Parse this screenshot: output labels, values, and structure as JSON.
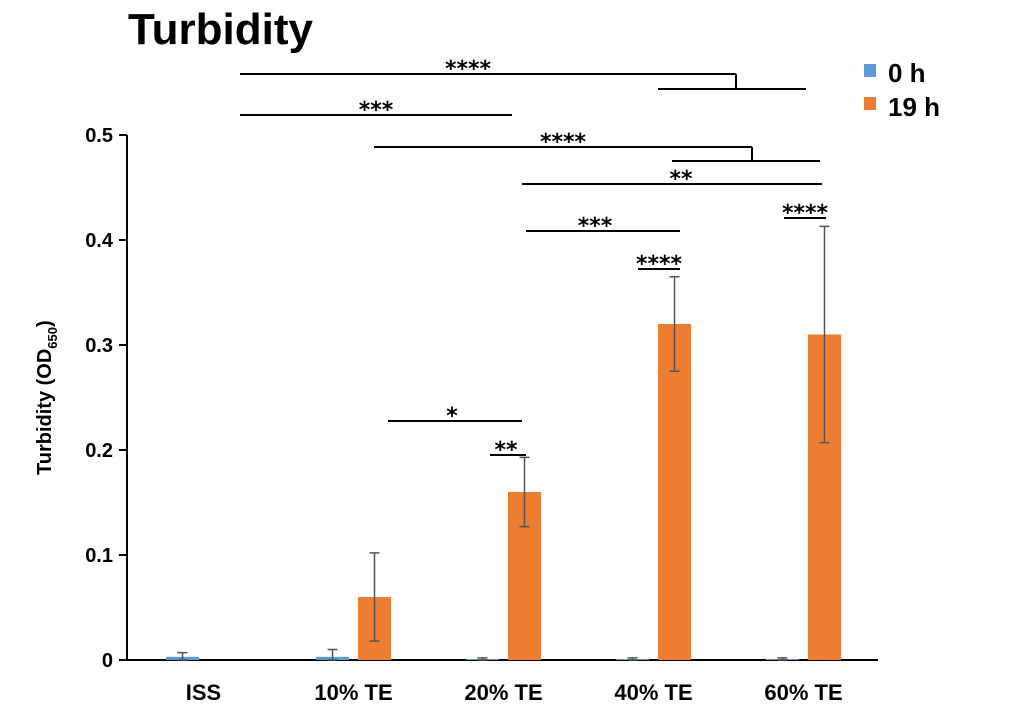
{
  "chart_data": {
    "type": "bar",
    "title": "Turbidity",
    "ylabel_main": "Turbidity (OD",
    "ylabel_sub": "650",
    "ylabel_close": ")",
    "ylim": [
      0,
      0.5
    ],
    "yticks": [
      0,
      0.1,
      0.2,
      0.3,
      0.4,
      0.5
    ],
    "ytick_labels": [
      "0",
      "0.1",
      "0.2",
      "0.3",
      "0.4",
      "0.5"
    ],
    "categories": [
      "ISS",
      "10%  TE",
      "20%  TE",
      "40%  TE",
      "60%  TE"
    ],
    "series": [
      {
        "name": "0 h",
        "color": "#5b9bd5",
        "values": [
          0.003,
          0.003,
          0.001,
          0.001,
          0.001
        ],
        "errors": [
          0.004,
          0.007,
          0.001,
          0.001,
          0.001
        ]
      },
      {
        "name": "19 h",
        "color": "#ed7d31",
        "values": [
          0.0,
          0.06,
          0.16,
          0.32,
          0.31
        ],
        "errors": [
          0.0,
          0.042,
          0.033,
          0.045,
          0.103
        ]
      }
    ],
    "grid": false,
    "legend_position": "top-right",
    "significance": [
      {
        "label": "****",
        "from": "0h:ISS",
        "to": "19h:40%  TE + 19h:60%  TE (bracket)"
      },
      {
        "label": "***",
        "from": "0h:ISS",
        "to": "0h:20%  TE"
      },
      {
        "label": "****",
        "from": "0h:10%  TE",
        "to": "19h:40%  TE + 19h:60%  TE (bracket)"
      },
      {
        "label": "**",
        "from": "0h:20%  TE",
        "to": "19h:60%  TE"
      },
      {
        "label": "***",
        "from": "0h:20%  TE",
        "to": "19h:40%  TE"
      },
      {
        "label": "****",
        "from": "0h:40%  TE",
        "to": "19h:40%  TE"
      },
      {
        "label": "****",
        "from": "0h:60%  TE",
        "to": "19h:60%  TE"
      },
      {
        "label": "*",
        "from": "19h:10%  TE",
        "to": "19h:20%  TE"
      },
      {
        "label": "**",
        "from": "0h:20%  TE",
        "to": "19h:20%  TE"
      }
    ]
  }
}
